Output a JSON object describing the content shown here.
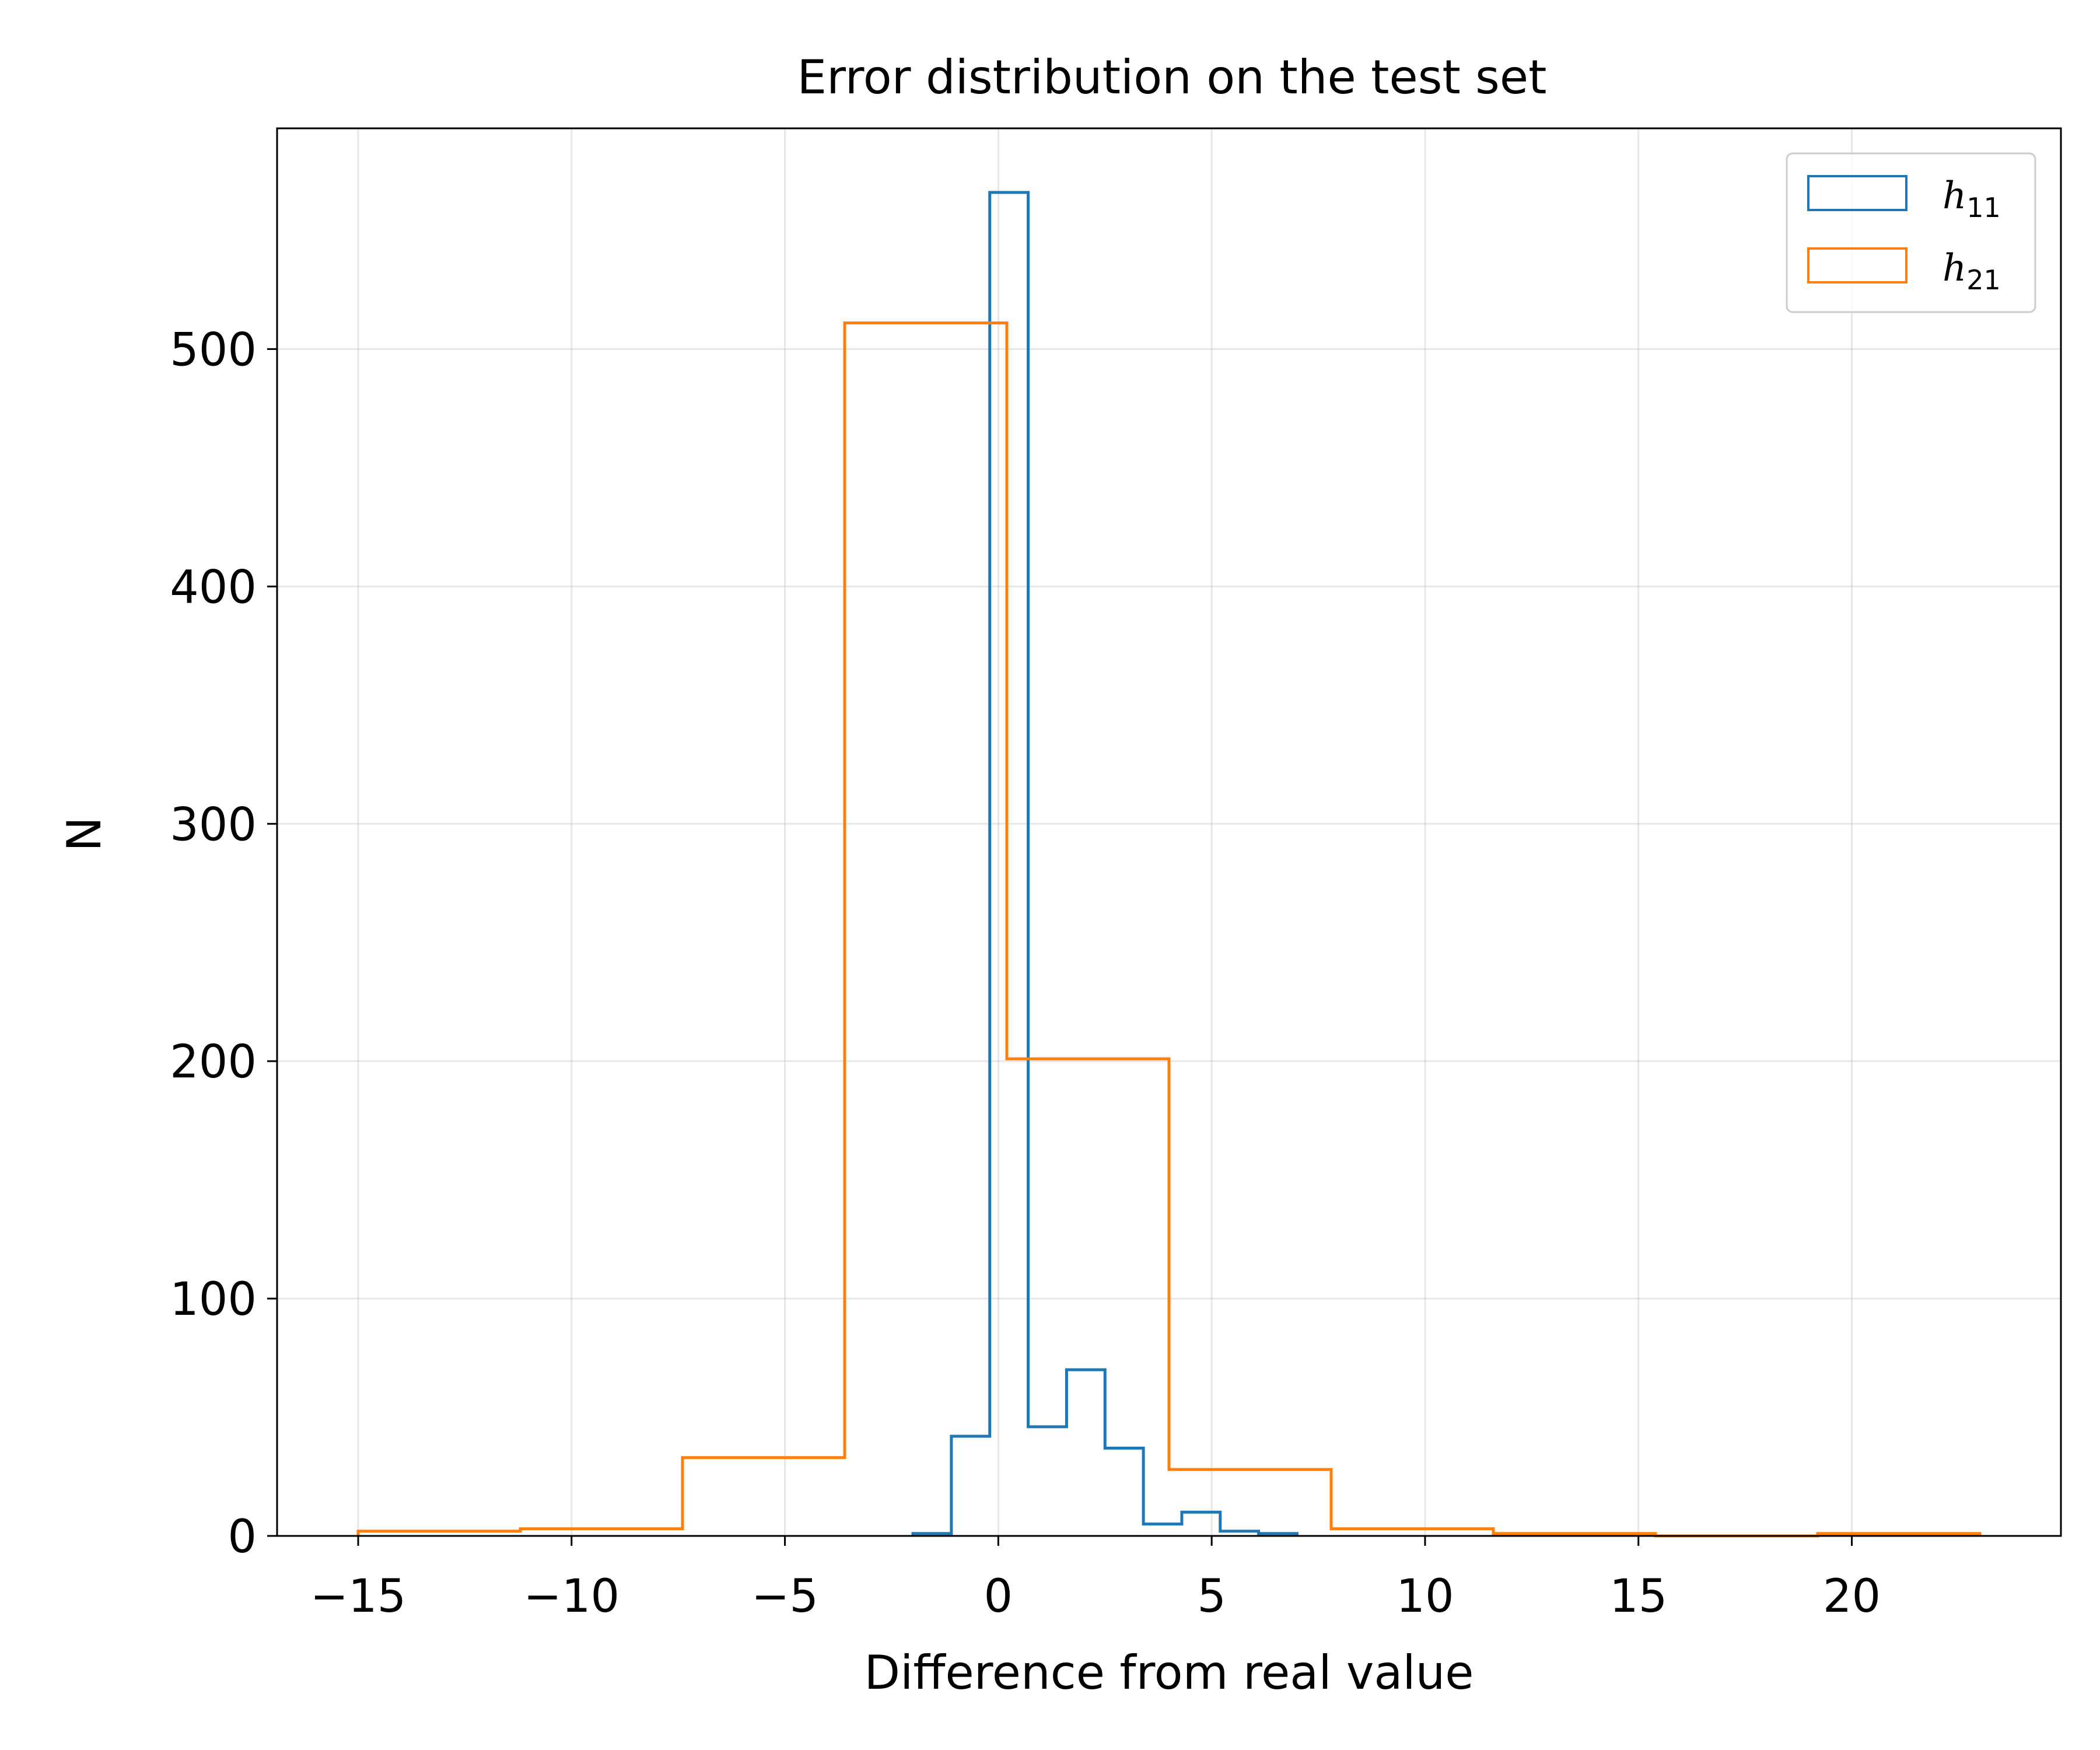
{
  "chart_data": {
    "type": "histogram",
    "title": "Error distribution on the test set",
    "xlabel": "Difference from real value",
    "ylabel": "N",
    "xlim": [
      -16.9,
      24.9
    ],
    "ylim": [
      0,
      593
    ],
    "x_ticks": [
      -15,
      -10,
      -5,
      0,
      5,
      10,
      15,
      20
    ],
    "x_tick_labels": [
      "−15",
      "−10",
      "−5",
      "0",
      "5",
      "10",
      "15",
      "20"
    ],
    "y_ticks": [
      0,
      100,
      200,
      300,
      400,
      500
    ],
    "y_tick_labels": [
      "0",
      "100",
      "200",
      "300",
      "400",
      "500"
    ],
    "grid": true,
    "legend_position": "top-right",
    "series": [
      {
        "name": "h",
        "name_sub": "11",
        "color": "#1f77b4",
        "bin_edges": [
          -2.0,
          -1.1,
          -0.2,
          0.7,
          1.6,
          2.5,
          3.4,
          4.3,
          5.2,
          6.1,
          7.0
        ],
        "counts": [
          1,
          42,
          566,
          46,
          70,
          37,
          5,
          10,
          2,
          1
        ]
      },
      {
        "name": "h",
        "name_sub": "21",
        "color": "#ff7f0e",
        "bin_edges": [
          -15.0,
          -11.2,
          -7.4,
          -3.6,
          0.2,
          4.0,
          7.8,
          11.6,
          15.4,
          19.2,
          23.0
        ],
        "counts": [
          2,
          3,
          33,
          511,
          201,
          28,
          3,
          1,
          0,
          1
        ]
      }
    ]
  }
}
